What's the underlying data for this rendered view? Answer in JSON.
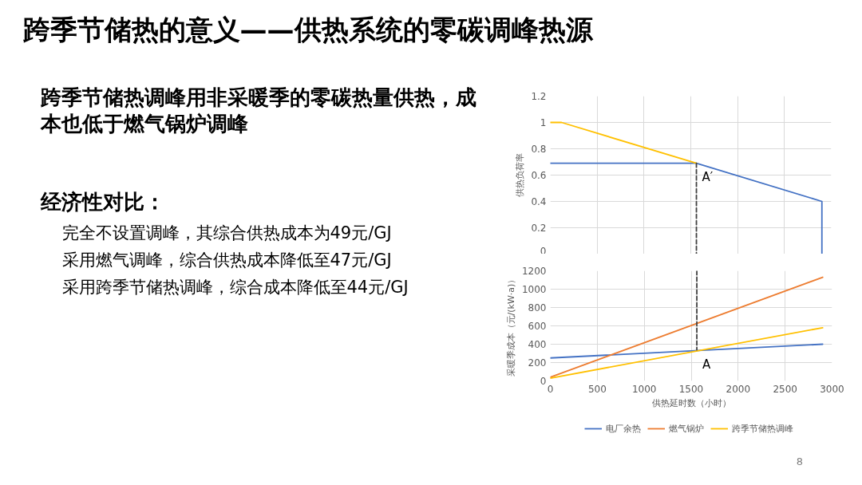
{
  "chart_data": [
    {
      "type": "other",
      "title": "跨季节储热的意义——供热系统的零碳调峰热源",
      "annotations": [
        "跨季节储热调峰用非采暖季的零碳热量供热，成本也低于燃气锅炉调峰",
        "经济性对比：",
        "完全不设置调峰，其综合供热成本为49元/GJ",
        "采用燃气调峰，综合供热成本降低至47元/GJ",
        "采用跨季节储热调峰，综合成本降低至44元/GJ",
        "8"
      ]
    },
    {
      "type": "line",
      "ylabel": "供热负荷率",
      "xlim": [
        0,
        3000
      ],
      "xticks": [
        0,
        500,
        1000,
        1500,
        2000,
        2500,
        3000
      ],
      "ylim": [
        0,
        1.2
      ],
      "yticks": [
        0,
        0.2,
        0.4,
        0.6,
        0.8,
        1,
        1.2
      ],
      "tick_labels": "y",
      "grid": true,
      "series": [
        {
          "color": "#4472c4",
          "x": [
            0,
            1560,
            2900,
            2900
          ],
          "values": [
            0.69,
            0.69,
            0.4,
            0
          ]
        },
        {
          "color": "#ffc000",
          "x": [
            0,
            120,
            1560
          ],
          "values": [
            1,
            1,
            0.69
          ]
        },
        {
          "color": "#404040",
          "line_style": "dashed",
          "x": [
            1560,
            1560
          ],
          "values": [
            0.69,
            0
          ]
        }
      ],
      "annotations": [
        {
          "text": "A′",
          "x": 1560,
          "y": 0.69
        }
      ]
    },
    {
      "type": "line",
      "xlabel": "供热延时数（小时）",
      "ylabel": "采暖季成本（元/(kW·a)）",
      "xlim": [
        0,
        3000
      ],
      "xticks": [
        0,
        500,
        1000,
        1500,
        2000,
        2500,
        3000
      ],
      "ylim": [
        0,
        1200
      ],
      "yticks": [
        0,
        200,
        400,
        600,
        800,
        1000,
        1200
      ],
      "grid": true,
      "legend": "bottom",
      "series": [
        {
          "name": "电厂余热",
          "color": "#4472c4",
          "x": [
            0,
            2900
          ],
          "values": [
            250,
            400
          ]
        },
        {
          "name": "燃气锅炉",
          "color": "#ed7d31",
          "x": [
            0,
            2900
          ],
          "values": [
            40,
            1130
          ]
        },
        {
          "name": "跨季节储热调峰",
          "color": "#ffc000",
          "x": [
            0,
            2900
          ],
          "values": [
            30,
            580
          ]
        },
        {
          "color": "#404040",
          "line_style": "dashed",
          "x": [
            1560,
            1560
          ],
          "values": [
            1200,
            340
          ]
        }
      ],
      "annotations": [
        {
          "text": "A",
          "x": 1560,
          "y": 330
        }
      ]
    }
  ]
}
